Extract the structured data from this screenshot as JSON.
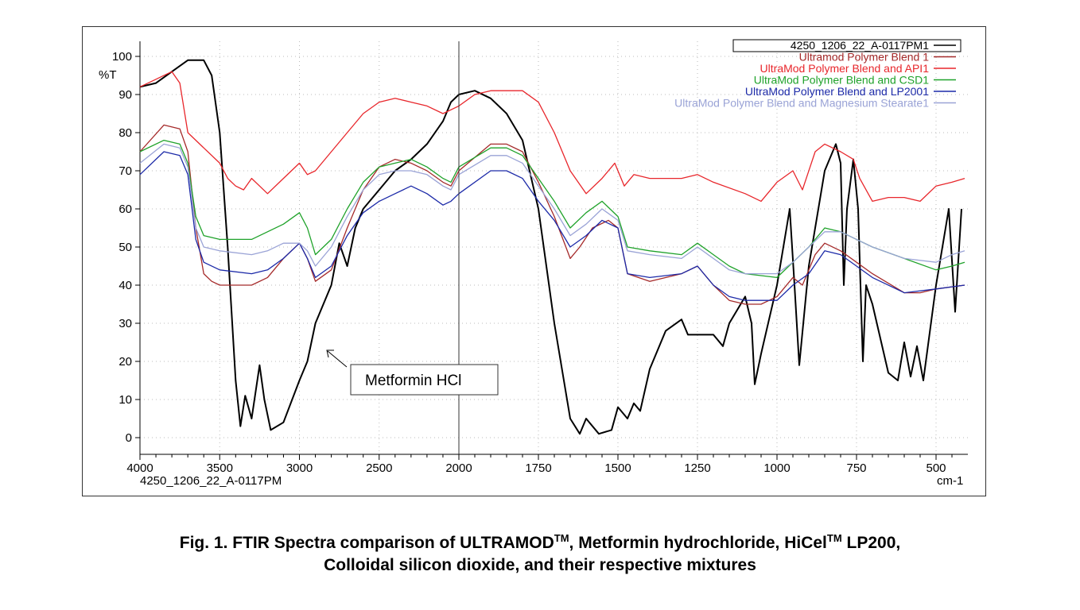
{
  "chart_data": {
    "type": "line",
    "xlabel": "cm-1",
    "ylabel": "%T",
    "x_sublabel": "4250_1206_22_A-0117PM",
    "xlim": [
      4000,
      400
    ],
    "x_scale_break": 2000,
    "ylim": [
      -4,
      104
    ],
    "x_ticks": [
      4000,
      3500,
      3000,
      2500,
      2000,
      1750,
      1500,
      1250,
      1000,
      750,
      500
    ],
    "y_ticks": [
      0,
      10,
      20,
      30,
      40,
      50,
      60,
      70,
      80,
      90,
      100
    ],
    "grid": true,
    "legend_position": "top-right",
    "annotation": {
      "text": "Metformin HCl",
      "target": [
        2830,
        23
      ]
    },
    "series": [
      {
        "name": "4250_1206_22_A-0117PM1",
        "color": "#000000",
        "x": [
          4000,
          3900,
          3800,
          3700,
          3600,
          3550,
          3500,
          3450,
          3400,
          3370,
          3340,
          3300,
          3250,
          3220,
          3180,
          3100,
          3000,
          2950,
          2900,
          2800,
          2750,
          2700,
          2650,
          2600,
          2500,
          2400,
          2300,
          2200,
          2100,
          2050,
          2000,
          1950,
          1900,
          1850,
          1800,
          1750,
          1700,
          1650,
          1620,
          1600,
          1560,
          1520,
          1500,
          1470,
          1450,
          1430,
          1400,
          1350,
          1300,
          1280,
          1200,
          1170,
          1150,
          1100,
          1080,
          1070,
          1050,
          1000,
          960,
          945,
          930,
          900,
          850,
          815,
          800,
          790,
          780,
          760,
          745,
          730,
          720,
          700,
          650,
          620,
          600,
          580,
          560,
          540,
          500,
          460,
          440,
          420
        ],
        "y": [
          92,
          93,
          96,
          99,
          99,
          95,
          80,
          50,
          15,
          3,
          11,
          5,
          19,
          10,
          2,
          4,
          15,
          20,
          30,
          40,
          51,
          45,
          55,
          60,
          65,
          70,
          73,
          77,
          83,
          88,
          90,
          91,
          89,
          85,
          78,
          60,
          30,
          5,
          1,
          5,
          1,
          2,
          8,
          5,
          9,
          7,
          18,
          28,
          31,
          27,
          27,
          24,
          30,
          37,
          30,
          14,
          22,
          40,
          60,
          40,
          19,
          45,
          70,
          77,
          72,
          40,
          60,
          73,
          60,
          20,
          40,
          35,
          17,
          15,
          25,
          16,
          24,
          15,
          40,
          60,
          33,
          60
        ]
      },
      {
        "name": "Ultramod Polymer Blend 1",
        "color": "#a52a2a",
        "x": [
          4000,
          3850,
          3750,
          3700,
          3650,
          3600,
          3550,
          3500,
          3300,
          3200,
          3100,
          3000,
          2950,
          2900,
          2800,
          2700,
          2600,
          2500,
          2400,
          2300,
          2200,
          2100,
          2050,
          2000,
          1900,
          1850,
          1800,
          1750,
          1700,
          1650,
          1620,
          1580,
          1530,
          1500,
          1470,
          1400,
          1300,
          1250,
          1200,
          1150,
          1100,
          1050,
          1000,
          950,
          920,
          880,
          850,
          800,
          750,
          700,
          600,
          550,
          500,
          410
        ],
        "y": [
          75,
          82,
          81,
          75,
          55,
          43,
          41,
          40,
          40,
          42,
          47,
          51,
          47,
          41,
          44,
          55,
          65,
          71,
          73,
          72,
          70,
          67,
          66,
          70,
          77,
          77,
          75,
          67,
          58,
          47,
          50,
          55,
          57,
          55,
          43,
          41,
          43,
          45,
          40,
          36,
          35,
          35,
          37,
          42,
          40,
          48,
          51,
          49,
          46,
          43,
          38,
          38,
          39,
          40
        ]
      },
      {
        "name": "UltraMod Polymer Blend and API1",
        "color": "#e8262b",
        "x": [
          4000,
          3900,
          3800,
          3750,
          3700,
          3600,
          3500,
          3450,
          3400,
          3350,
          3300,
          3250,
          3200,
          3100,
          3000,
          2950,
          2900,
          2800,
          2700,
          2600,
          2500,
          2400,
          2300,
          2200,
          2100,
          2000,
          1950,
          1900,
          1800,
          1750,
          1700,
          1650,
          1600,
          1550,
          1510,
          1480,
          1450,
          1400,
          1300,
          1250,
          1200,
          1100,
          1050,
          1000,
          950,
          920,
          880,
          850,
          800,
          760,
          740,
          700,
          650,
          600,
          550,
          500,
          450,
          410
        ],
        "y": [
          92,
          94,
          96,
          93,
          80,
          76,
          72,
          68,
          66,
          65,
          68,
          66,
          64,
          68,
          72,
          69,
          70,
          75,
          80,
          85,
          88,
          89,
          88,
          87,
          85,
          87,
          90,
          91,
          91,
          88,
          80,
          70,
          64,
          68,
          72,
          66,
          69,
          68,
          68,
          69,
          67,
          64,
          62,
          67,
          70,
          65,
          75,
          77,
          75,
          73,
          68,
          62,
          63,
          63,
          62,
          66,
          67,
          68
        ]
      },
      {
        "name": "UltraMod Polymer Blend and CSD1",
        "color": "#1fa22a",
        "x": [
          4000,
          3850,
          3750,
          3700,
          3650,
          3600,
          3500,
          3400,
          3300,
          3200,
          3100,
          3000,
          2950,
          2900,
          2800,
          2700,
          2600,
          2500,
          2400,
          2300,
          2200,
          2100,
          2050,
          2000,
          1900,
          1850,
          1800,
          1750,
          1700,
          1650,
          1600,
          1550,
          1500,
          1470,
          1400,
          1300,
          1250,
          1200,
          1150,
          1100,
          1000,
          950,
          900,
          850,
          800,
          750,
          700,
          600,
          500,
          450,
          410
        ],
        "y": [
          75,
          78,
          77,
          72,
          58,
          53,
          52,
          52,
          52,
          54,
          56,
          59,
          55,
          48,
          52,
          60,
          67,
          71,
          72,
          73,
          71,
          68,
          67,
          71,
          76,
          76,
          74,
          68,
          62,
          55,
          59,
          62,
          58,
          50,
          49,
          48,
          51,
          48,
          45,
          43,
          42,
          46,
          50,
          55,
          54,
          52,
          50,
          47,
          44,
          45,
          46
        ]
      },
      {
        "name": "UltraMod Polymer Blend and LP2001",
        "color": "#1c2aa8",
        "x": [
          4000,
          3850,
          3750,
          3700,
          3650,
          3600,
          3500,
          3300,
          3200,
          3100,
          3000,
          2950,
          2900,
          2800,
          2700,
          2600,
          2500,
          2400,
          2300,
          2200,
          2100,
          2050,
          2000,
          1900,
          1850,
          1800,
          1750,
          1700,
          1650,
          1600,
          1550,
          1500,
          1470,
          1400,
          1300,
          1250,
          1200,
          1150,
          1100,
          1000,
          950,
          900,
          850,
          800,
          750,
          700,
          600,
          500,
          410
        ],
        "y": [
          69,
          75,
          74,
          69,
          52,
          46,
          44,
          43,
          44,
          47,
          51,
          47,
          42,
          45,
          53,
          59,
          62,
          64,
          66,
          64,
          61,
          62,
          64,
          70,
          70,
          68,
          62,
          57,
          50,
          53,
          57,
          55,
          43,
          42,
          43,
          45,
          40,
          37,
          36,
          36,
          40,
          43,
          49,
          48,
          45,
          42,
          38,
          39,
          40
        ]
      },
      {
        "name": "UltraMod Polymer Blend and Magnesium Stearate1",
        "color": "#9aa3d6",
        "x": [
          4000,
          3850,
          3750,
          3700,
          3650,
          3600,
          3500,
          3300,
          3200,
          3100,
          3000,
          2950,
          2900,
          2800,
          2700,
          2600,
          2500,
          2400,
          2300,
          2200,
          2100,
          2050,
          2000,
          1900,
          1850,
          1800,
          1750,
          1700,
          1650,
          1600,
          1550,
          1500,
          1470,
          1400,
          1300,
          1250,
          1200,
          1150,
          1100,
          1000,
          950,
          900,
          850,
          800,
          750,
          700,
          600,
          500,
          450,
          410
        ],
        "y": [
          72,
          77,
          76,
          71,
          55,
          50,
          49,
          48,
          49,
          51,
          51,
          49,
          45,
          50,
          58,
          65,
          69,
          70,
          70,
          69,
          66,
          65,
          69,
          74,
          74,
          72,
          66,
          60,
          53,
          56,
          60,
          57,
          49,
          48,
          47,
          50,
          47,
          44,
          43,
          43,
          46,
          50,
          54,
          54,
          52,
          50,
          47,
          46,
          48,
          49
        ]
      }
    ]
  },
  "caption": {
    "line1_a": "Fig. 1. FTIR Spectra comparison of ULTRAMOD",
    "tm1": "TM",
    "line1_b": ", Metformin hydrochloride, HiCel",
    "tm2": "TM",
    "line1_c": " LP200,",
    "line2": "Colloidal silicon dioxide, and their respective mixtures"
  }
}
